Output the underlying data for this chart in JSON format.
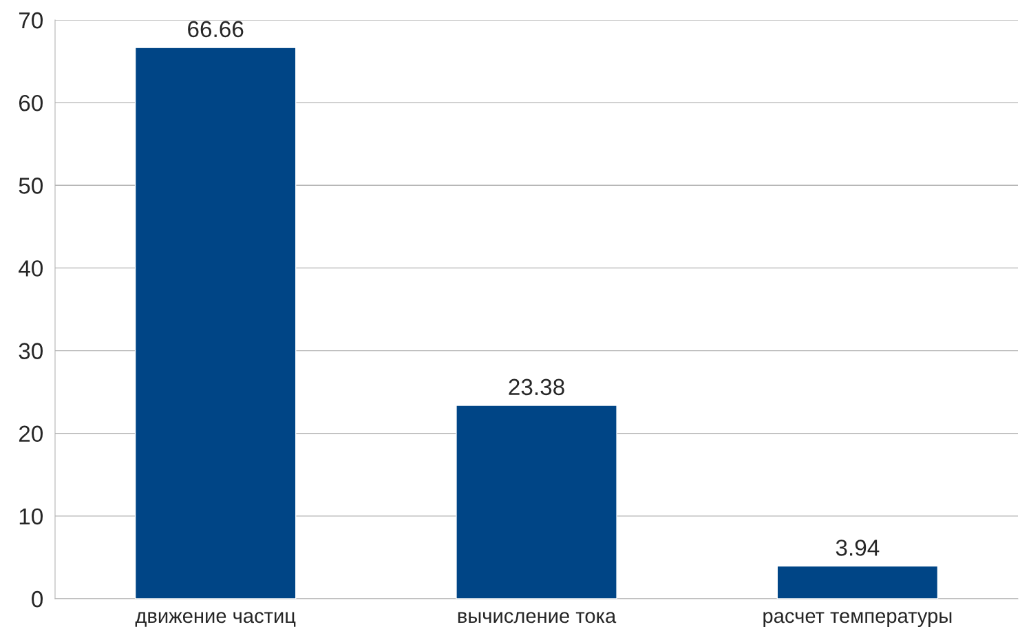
{
  "chart_data": {
    "type": "bar",
    "categories": [
      "движение частиц",
      "вычисление тока",
      "расчет температуры"
    ],
    "values": [
      66.66,
      23.38,
      3.94
    ],
    "color": "#004586",
    "ylim": [
      0,
      70
    ],
    "yticks": [
      0,
      10,
      20,
      30,
      40,
      50,
      60,
      70
    ],
    "grid": "y",
    "data_labels": true,
    "legend": false
  }
}
